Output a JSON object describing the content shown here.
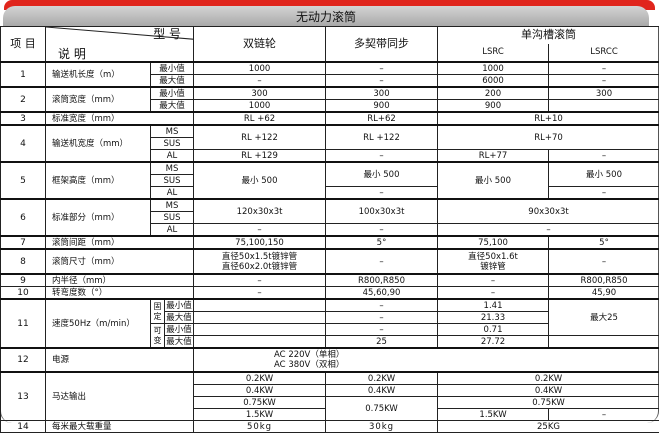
{
  "title": "无动力滚筒",
  "header": {
    "item": "项 目",
    "desc": "说 明",
    "model": "型 号",
    "col1": "双链轮",
    "col2": "多契带同步",
    "group": "单沟槽滚筒",
    "col3": "LSRC",
    "col4": "LSRCC"
  },
  "sub": {
    "min": "最小值",
    "max": "最大值",
    "ms": "MS",
    "sus": "SUS",
    "al": "AL",
    "fixed": "固定",
    "var": "可变"
  },
  "rows": [
    {
      "no": "1",
      "label": "输送机长度（m）",
      "v": [
        [
          "1000",
          "–",
          "1000",
          "–"
        ],
        [
          "–",
          "–",
          "6000",
          "–"
        ]
      ]
    },
    {
      "no": "2",
      "label": "滚筒宽度（mm）",
      "v": [
        [
          "300",
          "300",
          "200",
          "300"
        ],
        [
          "1000",
          "900",
          "900",
          ""
        ]
      ]
    },
    {
      "no": "3",
      "label": "标准宽度（mm）",
      "v": [
        [
          "RL +62",
          "RL+62",
          "RL+10"
        ]
      ]
    },
    {
      "no": "4",
      "label": "输送机宽度（mm）",
      "v": [
        [
          "RL +122",
          "RL +122",
          "RL+70"
        ],
        [
          "RL +129",
          "–",
          "RL+77",
          "–"
        ]
      ]
    },
    {
      "no": "5",
      "label": "框架高度（mm）",
      "v": [
        [
          "最小 500",
          "最小 500",
          "最小 500",
          "最小 500"
        ],
        [
          "–",
          "–"
        ]
      ]
    },
    {
      "no": "6",
      "label": "标准部分（mm）",
      "v": [
        [
          "120x30x3t",
          "100x30x3t",
          "90x30x3t"
        ],
        [
          "–",
          "–",
          "–"
        ]
      ]
    },
    {
      "no": "7",
      "label": "滚筒间距（mm）",
      "v": [
        [
          "75,100,150",
          "5°",
          "75,100",
          "5°"
        ]
      ]
    },
    {
      "no": "8",
      "label": "滚筒尺寸（mm）",
      "v": [
        [
          "直径50x1.5t镀锌管",
          "直径60x2.0t镀锌管",
          "–",
          "直径50x1.6t",
          "镀锌管",
          "–"
        ]
      ]
    },
    {
      "no": "9",
      "label": "内半径（mm）",
      "v": [
        [
          "–",
          "R800,R850",
          "–",
          "R800,R850"
        ]
      ]
    },
    {
      "no": "10",
      "label": "转弯度数（°）",
      "v": [
        [
          "–",
          "45,60,90",
          "–",
          "45,90"
        ]
      ]
    },
    {
      "no": "11",
      "label": "速度50Hz（m/min）",
      "v": [
        [
          "–",
          "1.41",
          "最大25"
        ],
        [
          "–",
          "21.33"
        ],
        [
          "–",
          "0.71"
        ],
        [
          "25",
          "27.72"
        ]
      ]
    },
    {
      "no": "12",
      "label": "电源",
      "v": [
        [
          "AC 220V（单相）",
          "AC 380V（双相）"
        ]
      ]
    },
    {
      "no": "13",
      "label": "马达输出",
      "v": [
        [
          "0.2KW",
          "0.2KW",
          "0.2KW"
        ],
        [
          "0.4KW",
          "0.4KW",
          "0.4KW"
        ],
        [
          "0.75KW",
          "0.75KW",
          "0.75KW"
        ],
        [
          "1.5KW",
          "1.5KW",
          "–"
        ]
      ]
    },
    {
      "no": "14",
      "label": "每米最大载重量",
      "v": [
        [
          "50kg",
          "30kg",
          "25KG"
        ]
      ]
    }
  ],
  "colors": {
    "accent_red": "#e0251c",
    "title_gray": "#b8b8b8"
  }
}
